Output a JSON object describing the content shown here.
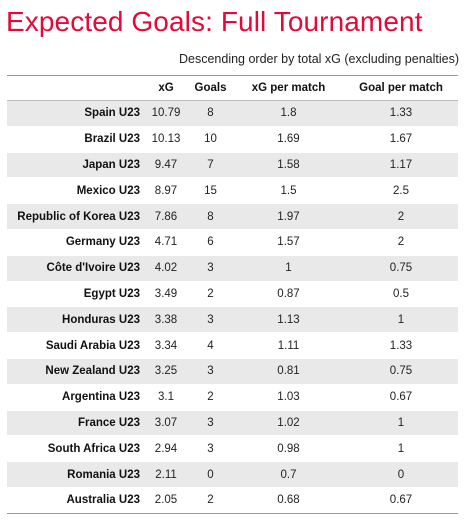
{
  "title": "Expected Goals: Full Tournament",
  "subtitle": "Descending order by total xG (excluding penalties)",
  "chart_data": {
    "type": "table",
    "title": "Expected Goals: Full Tournament",
    "subtitle": "Descending order by total xG (excluding penalties)",
    "columns": [
      "",
      "xG",
      "Goals",
      "xG per match",
      "Goal per match"
    ],
    "rows": [
      {
        "team": "Spain U23",
        "xg": "10.79",
        "goals": "8",
        "xg_per_match": "1.8",
        "goal_per_match": "1.33"
      },
      {
        "team": "Brazil U23",
        "xg": "10.13",
        "goals": "10",
        "xg_per_match": "1.69",
        "goal_per_match": "1.67"
      },
      {
        "team": "Japan U23",
        "xg": "9.47",
        "goals": "7",
        "xg_per_match": "1.58",
        "goal_per_match": "1.17"
      },
      {
        "team": "Mexico U23",
        "xg": "8.97",
        "goals": "15",
        "xg_per_match": "1.5",
        "goal_per_match": "2.5"
      },
      {
        "team": "Republic of Korea U23",
        "xg": "7.86",
        "goals": "8",
        "xg_per_match": "1.97",
        "goal_per_match": "2"
      },
      {
        "team": "Germany U23",
        "xg": "4.71",
        "goals": "6",
        "xg_per_match": "1.57",
        "goal_per_match": "2"
      },
      {
        "team": "Côte d'Ivoire U23",
        "xg": "4.02",
        "goals": "3",
        "xg_per_match": "1",
        "goal_per_match": "0.75"
      },
      {
        "team": "Egypt U23",
        "xg": "3.49",
        "goals": "2",
        "xg_per_match": "0.87",
        "goal_per_match": "0.5"
      },
      {
        "team": "Honduras U23",
        "xg": "3.38",
        "goals": "3",
        "xg_per_match": "1.13",
        "goal_per_match": "1"
      },
      {
        "team": "Saudi Arabia U23",
        "xg": "3.34",
        "goals": "4",
        "xg_per_match": "1.11",
        "goal_per_match": "1.33"
      },
      {
        "team": "New Zealand U23",
        "xg": "3.25",
        "goals": "3",
        "xg_per_match": "0.81",
        "goal_per_match": "0.75"
      },
      {
        "team": "Argentina U23",
        "xg": "3.1",
        "goals": "2",
        "xg_per_match": "1.03",
        "goal_per_match": "0.67"
      },
      {
        "team": "France U23",
        "xg": "3.07",
        "goals": "3",
        "xg_per_match": "1.02",
        "goal_per_match": "1"
      },
      {
        "team": "South Africa U23",
        "xg": "2.94",
        "goals": "3",
        "xg_per_match": "0.98",
        "goal_per_match": "1"
      },
      {
        "team": "Romania U23",
        "xg": "2.11",
        "goals": "0",
        "xg_per_match": "0.7",
        "goal_per_match": "0"
      },
      {
        "team": "Australia U23",
        "xg": "2.05",
        "goals": "2",
        "xg_per_match": "0.68",
        "goal_per_match": "0.67"
      }
    ]
  }
}
